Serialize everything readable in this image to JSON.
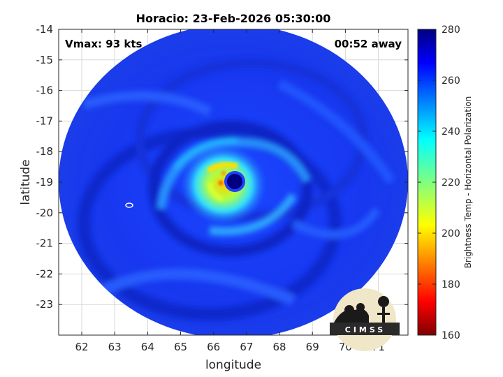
{
  "chart_data": {
    "type": "heatmap",
    "title": "Horacio: 23-Feb-2026 05:30:00",
    "xlabel": "longitude",
    "ylabel": "latitude",
    "xlim": [
      61.3,
      71.9
    ],
    "ylim": [
      -24.0,
      -14.0
    ],
    "x_ticks": [
      "62",
      "63",
      "64",
      "65",
      "66",
      "67",
      "68",
      "69",
      "70",
      "71"
    ],
    "y_ticks": [
      "-14",
      "-15",
      "-16",
      "-17",
      "-18",
      "-19",
      "-20",
      "-21",
      "-22",
      "-23"
    ],
    "grid": true,
    "annotations": {
      "vmax": "Vmax: 93 kts",
      "time_offset": "00:52 away"
    },
    "colorbar": {
      "label": "Brightness Temp - Horizontal Polarization",
      "range": [
        160,
        280
      ],
      "ticks": [
        "160",
        "180",
        "200",
        "220",
        "240",
        "260",
        "280"
      ],
      "colormap": "jet"
    },
    "storm": {
      "eye_center": [
        66.55,
        -19.0
      ],
      "eye_temp_min": 160,
      "eyewall_temp": 205,
      "background_temp": 262
    },
    "logo_text": "CIMSS"
  }
}
